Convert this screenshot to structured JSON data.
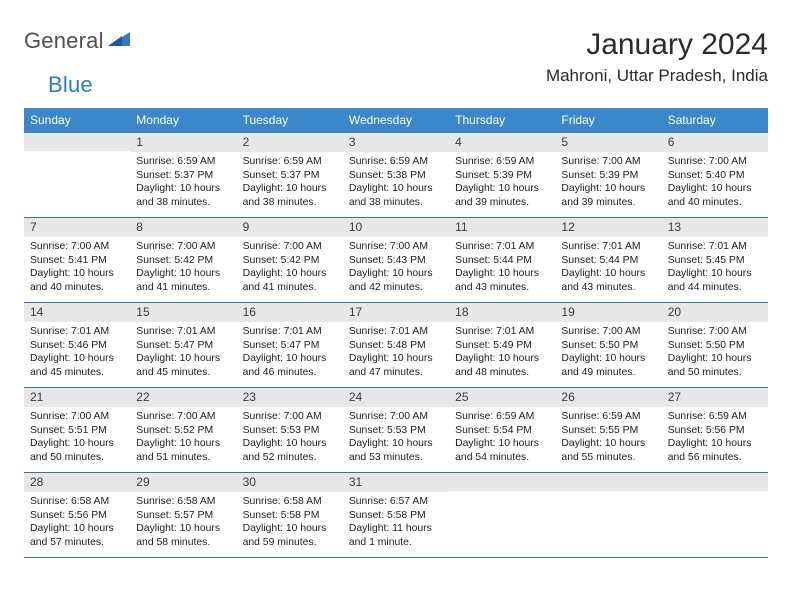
{
  "brand": {
    "part1": "General",
    "part2": "Blue"
  },
  "title": "January 2024",
  "location": "Mahroni, Uttar Pradesh, India",
  "header_bg": "#3b87c8",
  "rule_color": "#3b6fa0",
  "daynum_bg": "#e7e7e7",
  "weekdays": [
    "Sunday",
    "Monday",
    "Tuesday",
    "Wednesday",
    "Thursday",
    "Friday",
    "Saturday"
  ],
  "weeks": [
    [
      {
        "n": "",
        "lines": []
      },
      {
        "n": "1",
        "lines": [
          "Sunrise: 6:59 AM",
          "Sunset: 5:37 PM",
          "Daylight: 10 hours",
          "and 38 minutes."
        ]
      },
      {
        "n": "2",
        "lines": [
          "Sunrise: 6:59 AM",
          "Sunset: 5:37 PM",
          "Daylight: 10 hours",
          "and 38 minutes."
        ]
      },
      {
        "n": "3",
        "lines": [
          "Sunrise: 6:59 AM",
          "Sunset: 5:38 PM",
          "Daylight: 10 hours",
          "and 38 minutes."
        ]
      },
      {
        "n": "4",
        "lines": [
          "Sunrise: 6:59 AM",
          "Sunset: 5:39 PM",
          "Daylight: 10 hours",
          "and 39 minutes."
        ]
      },
      {
        "n": "5",
        "lines": [
          "Sunrise: 7:00 AM",
          "Sunset: 5:39 PM",
          "Daylight: 10 hours",
          "and 39 minutes."
        ]
      },
      {
        "n": "6",
        "lines": [
          "Sunrise: 7:00 AM",
          "Sunset: 5:40 PM",
          "Daylight: 10 hours",
          "and 40 minutes."
        ]
      }
    ],
    [
      {
        "n": "7",
        "lines": [
          "Sunrise: 7:00 AM",
          "Sunset: 5:41 PM",
          "Daylight: 10 hours",
          "and 40 minutes."
        ]
      },
      {
        "n": "8",
        "lines": [
          "Sunrise: 7:00 AM",
          "Sunset: 5:42 PM",
          "Daylight: 10 hours",
          "and 41 minutes."
        ]
      },
      {
        "n": "9",
        "lines": [
          "Sunrise: 7:00 AM",
          "Sunset: 5:42 PM",
          "Daylight: 10 hours",
          "and 41 minutes."
        ]
      },
      {
        "n": "10",
        "lines": [
          "Sunrise: 7:00 AM",
          "Sunset: 5:43 PM",
          "Daylight: 10 hours",
          "and 42 minutes."
        ]
      },
      {
        "n": "11",
        "lines": [
          "Sunrise: 7:01 AM",
          "Sunset: 5:44 PM",
          "Daylight: 10 hours",
          "and 43 minutes."
        ]
      },
      {
        "n": "12",
        "lines": [
          "Sunrise: 7:01 AM",
          "Sunset: 5:44 PM",
          "Daylight: 10 hours",
          "and 43 minutes."
        ]
      },
      {
        "n": "13",
        "lines": [
          "Sunrise: 7:01 AM",
          "Sunset: 5:45 PM",
          "Daylight: 10 hours",
          "and 44 minutes."
        ]
      }
    ],
    [
      {
        "n": "14",
        "lines": [
          "Sunrise: 7:01 AM",
          "Sunset: 5:46 PM",
          "Daylight: 10 hours",
          "and 45 minutes."
        ]
      },
      {
        "n": "15",
        "lines": [
          "Sunrise: 7:01 AM",
          "Sunset: 5:47 PM",
          "Daylight: 10 hours",
          "and 45 minutes."
        ]
      },
      {
        "n": "16",
        "lines": [
          "Sunrise: 7:01 AM",
          "Sunset: 5:47 PM",
          "Daylight: 10 hours",
          "and 46 minutes."
        ]
      },
      {
        "n": "17",
        "lines": [
          "Sunrise: 7:01 AM",
          "Sunset: 5:48 PM",
          "Daylight: 10 hours",
          "and 47 minutes."
        ]
      },
      {
        "n": "18",
        "lines": [
          "Sunrise: 7:01 AM",
          "Sunset: 5:49 PM",
          "Daylight: 10 hours",
          "and 48 minutes."
        ]
      },
      {
        "n": "19",
        "lines": [
          "Sunrise: 7:00 AM",
          "Sunset: 5:50 PM",
          "Daylight: 10 hours",
          "and 49 minutes."
        ]
      },
      {
        "n": "20",
        "lines": [
          "Sunrise: 7:00 AM",
          "Sunset: 5:50 PM",
          "Daylight: 10 hours",
          "and 50 minutes."
        ]
      }
    ],
    [
      {
        "n": "21",
        "lines": [
          "Sunrise: 7:00 AM",
          "Sunset: 5:51 PM",
          "Daylight: 10 hours",
          "and 50 minutes."
        ]
      },
      {
        "n": "22",
        "lines": [
          "Sunrise: 7:00 AM",
          "Sunset: 5:52 PM",
          "Daylight: 10 hours",
          "and 51 minutes."
        ]
      },
      {
        "n": "23",
        "lines": [
          "Sunrise: 7:00 AM",
          "Sunset: 5:53 PM",
          "Daylight: 10 hours",
          "and 52 minutes."
        ]
      },
      {
        "n": "24",
        "lines": [
          "Sunrise: 7:00 AM",
          "Sunset: 5:53 PM",
          "Daylight: 10 hours",
          "and 53 minutes."
        ]
      },
      {
        "n": "25",
        "lines": [
          "Sunrise: 6:59 AM",
          "Sunset: 5:54 PM",
          "Daylight: 10 hours",
          "and 54 minutes."
        ]
      },
      {
        "n": "26",
        "lines": [
          "Sunrise: 6:59 AM",
          "Sunset: 5:55 PM",
          "Daylight: 10 hours",
          "and 55 minutes."
        ]
      },
      {
        "n": "27",
        "lines": [
          "Sunrise: 6:59 AM",
          "Sunset: 5:56 PM",
          "Daylight: 10 hours",
          "and 56 minutes."
        ]
      }
    ],
    [
      {
        "n": "28",
        "lines": [
          "Sunrise: 6:58 AM",
          "Sunset: 5:56 PM",
          "Daylight: 10 hours",
          "and 57 minutes."
        ]
      },
      {
        "n": "29",
        "lines": [
          "Sunrise: 6:58 AM",
          "Sunset: 5:57 PM",
          "Daylight: 10 hours",
          "and 58 minutes."
        ]
      },
      {
        "n": "30",
        "lines": [
          "Sunrise: 6:58 AM",
          "Sunset: 5:58 PM",
          "Daylight: 10 hours",
          "and 59 minutes."
        ]
      },
      {
        "n": "31",
        "lines": [
          "Sunrise: 6:57 AM",
          "Sunset: 5:58 PM",
          "Daylight: 11 hours",
          "and 1 minute."
        ]
      },
      {
        "n": "",
        "lines": []
      },
      {
        "n": "",
        "lines": []
      },
      {
        "n": "",
        "lines": []
      }
    ]
  ]
}
